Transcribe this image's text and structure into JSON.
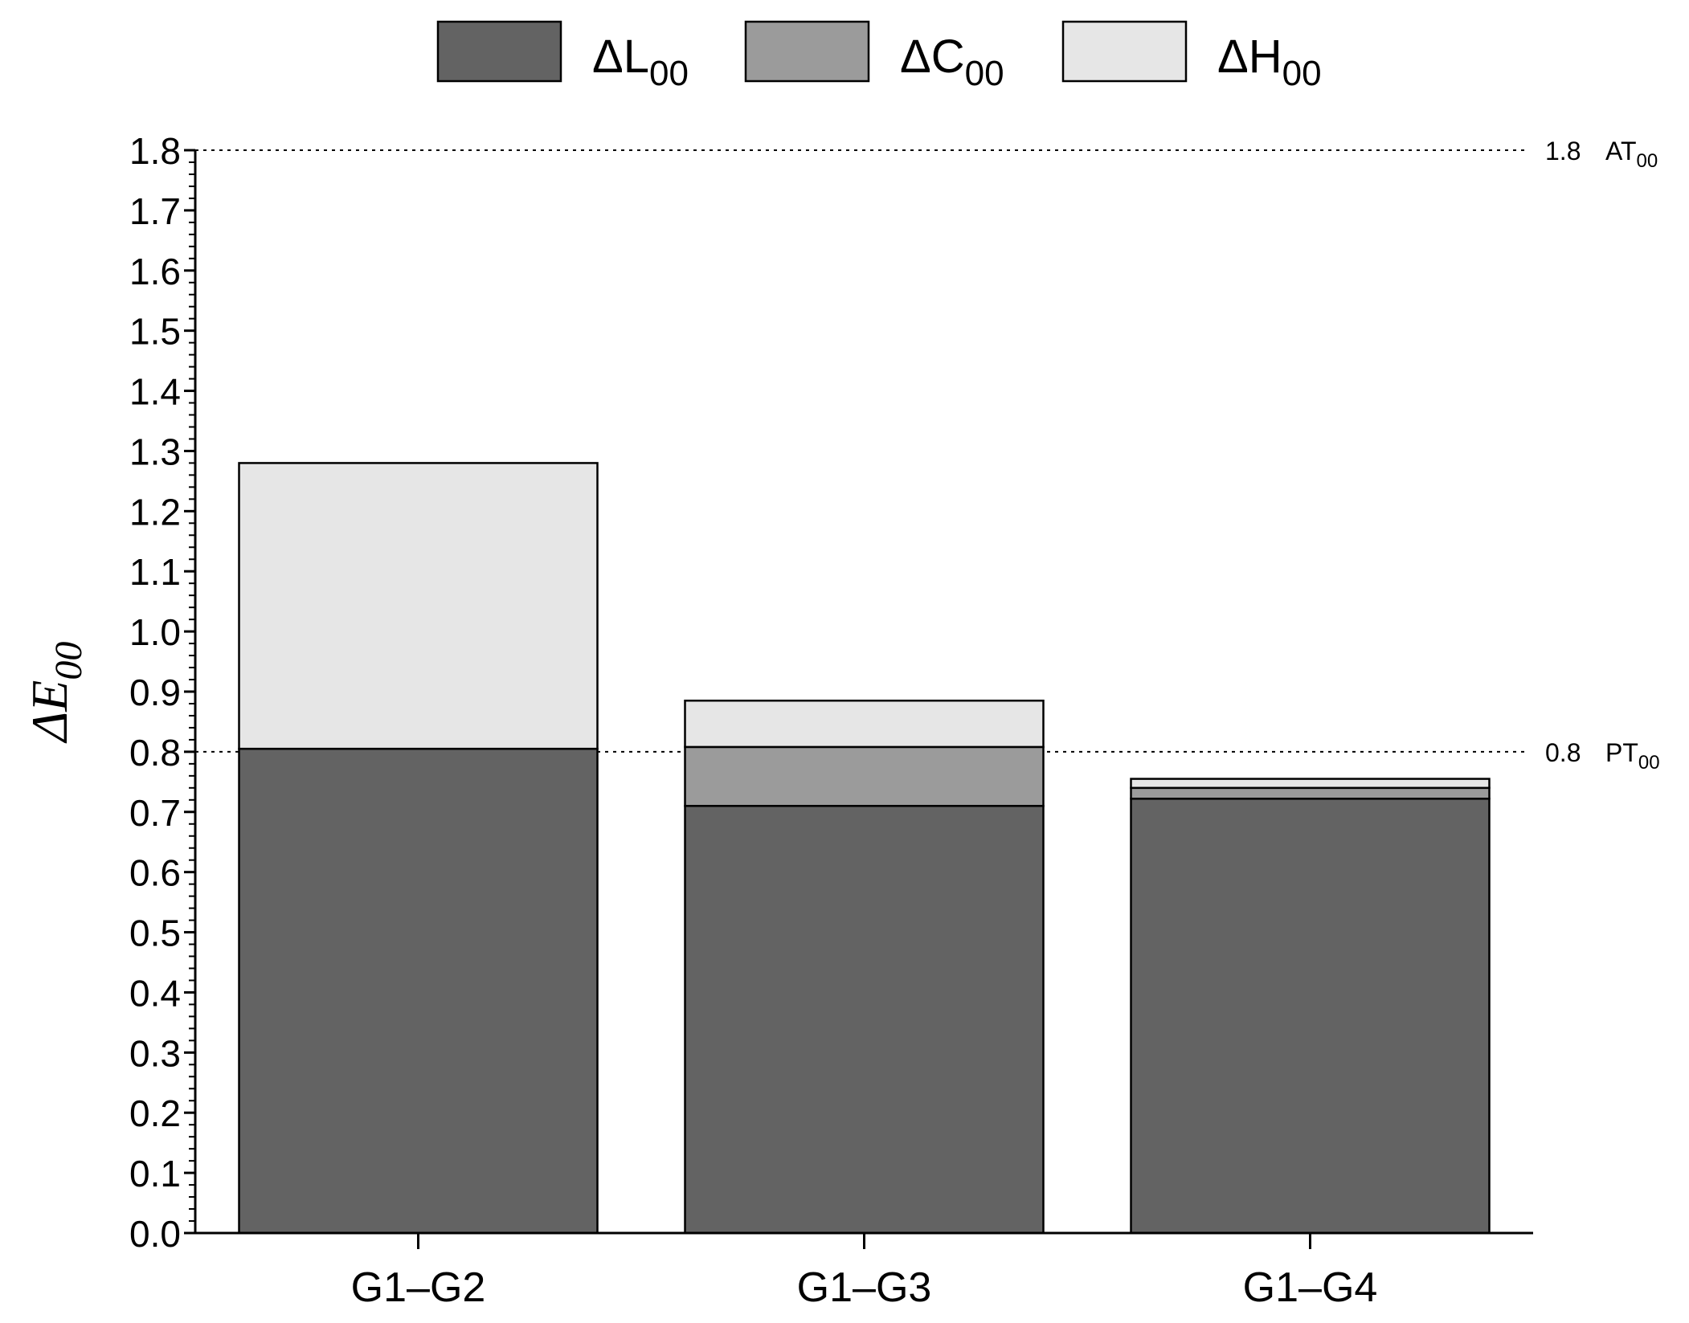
{
  "chart_data": {
    "type": "bar",
    "stacked": true,
    "title": "",
    "xlabel": "",
    "ylabel": "ΔE",
    "ylabel_sub": "00",
    "ylim": [
      0,
      1.8
    ],
    "yticks": [
      "0.0",
      "0.1",
      "0.2",
      "0.3",
      "0.4",
      "0.5",
      "0.6",
      "0.7",
      "0.8",
      "0.9",
      "1.0",
      "1.1",
      "1.2",
      "1.3",
      "1.4",
      "1.5",
      "1.6",
      "1.7",
      "1.8"
    ],
    "categories": [
      "G1–G2",
      "G1–G3",
      "G1–G4"
    ],
    "legend_position": "top-center",
    "series": [
      {
        "name": "ΔL",
        "sub": "00",
        "color": "#636363",
        "values": [
          0.805,
          0.71,
          0.722
        ]
      },
      {
        "name": "ΔC",
        "sub": "00",
        "color": "#9b9b9b",
        "values": [
          0.0,
          0.098,
          0.018
        ]
      },
      {
        "name": "ΔH",
        "sub": "00",
        "color": "#e6e6e6",
        "values": [
          0.475,
          0.077,
          0.015
        ]
      }
    ],
    "thresholds": [
      {
        "value": 1.8,
        "value_label": "1.8",
        "label": "AT",
        "sub": "00"
      },
      {
        "value": 0.8,
        "value_label": "0.8",
        "label": "PT",
        "sub": "00"
      }
    ]
  }
}
